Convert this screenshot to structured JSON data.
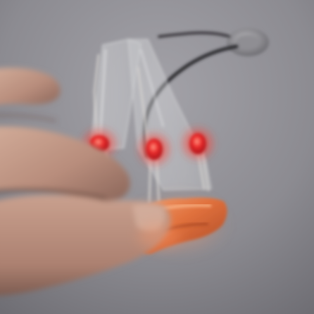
{
  "scene": {
    "colors": {
      "background": "#8b8a90",
      "skin": "#c39a86",
      "skin_shadow": "#8e6a5e",
      "led_red": "#e0242a",
      "led_glow": "#ff6a5a",
      "copper": "#e07a44",
      "wire": "#2c2a2e",
      "plastic": "#b9babd",
      "lead_metal": "#d6d3d0"
    }
  }
}
